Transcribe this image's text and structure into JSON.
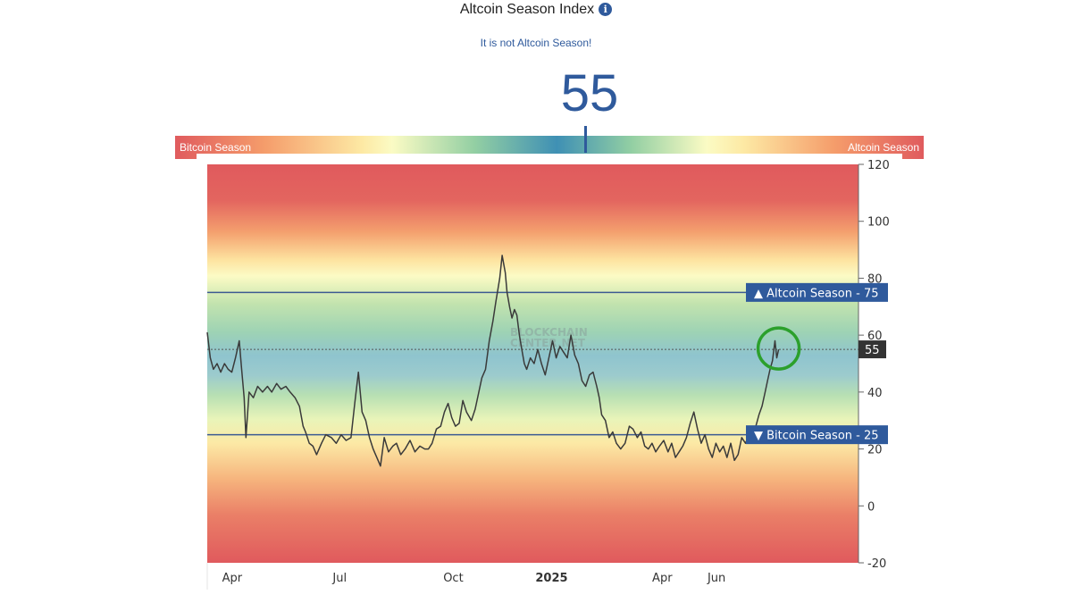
{
  "header": {
    "title": "Altcoin Season Index",
    "info_icon": "info-icon",
    "subtitle": "It is not Altcoin Season!",
    "current_value": "55"
  },
  "gauge": {
    "left_label": "Bitcoin Season",
    "right_label": "Altcoin Season",
    "value": 55,
    "scale_min": 0,
    "scale_max": 100
  },
  "watermark": [
    "BLOCKCHAIN",
    "CENTER.NET"
  ],
  "colors": {
    "accent": "#2f5a9c",
    "line": "#3a3a3a",
    "highlight_circle": "#2ca02c",
    "current_badge": "#333333"
  },
  "chart_data": {
    "type": "line",
    "title": "",
    "xlabel": "",
    "ylabel": "",
    "ylim": [
      -20,
      120
    ],
    "yticks": [
      120,
      100,
      80,
      60,
      40,
      20,
      0,
      -20
    ],
    "xticks": [
      {
        "label": "Apr",
        "t": 3,
        "bold": false
      },
      {
        "label": "Jul",
        "t": 21,
        "bold": false
      },
      {
        "label": "Oct",
        "t": 39,
        "bold": false
      },
      {
        "label": "2025",
        "t": 54,
        "bold": true
      },
      {
        "label": "Apr",
        "t": 73,
        "bold": false
      },
      {
        "label": "Jun",
        "t": 82,
        "bold": false
      }
    ],
    "x_range": [
      0,
      106
    ],
    "thresholds": [
      {
        "label": "Altcoin Season",
        "value": 75,
        "direction": "up"
      },
      {
        "label": "Bitcoin Season",
        "value": 25,
        "direction": "down"
      }
    ],
    "current": {
      "value": 55,
      "label": "55"
    },
    "series": [
      {
        "values": [
          [
            0,
            61
          ],
          [
            0.5,
            52
          ],
          [
            1,
            48
          ],
          [
            1.6,
            50
          ],
          [
            2.2,
            47
          ],
          [
            2.8,
            50
          ],
          [
            3.4,
            48
          ],
          [
            4,
            47
          ],
          [
            4.6,
            52
          ],
          [
            5,
            56
          ],
          [
            5.2,
            58
          ],
          [
            5.6,
            48
          ],
          [
            6,
            38
          ],
          [
            6.3,
            24
          ],
          [
            6.8,
            40
          ],
          [
            7.5,
            38
          ],
          [
            8.2,
            42
          ],
          [
            9,
            40
          ],
          [
            9.8,
            42
          ],
          [
            10.5,
            40
          ],
          [
            11.3,
            43
          ],
          [
            12,
            41
          ],
          [
            12.8,
            42
          ],
          [
            13.5,
            40
          ],
          [
            14.3,
            38
          ],
          [
            15,
            35
          ],
          [
            15.6,
            28
          ],
          [
            16,
            26
          ],
          [
            16.6,
            22
          ],
          [
            17.2,
            21
          ],
          [
            17.8,
            18
          ],
          [
            18.6,
            22
          ],
          [
            19.3,
            25
          ],
          [
            20.2,
            24
          ],
          [
            21,
            22
          ],
          [
            21.8,
            25
          ],
          [
            22.6,
            23
          ],
          [
            23.4,
            24
          ],
          [
            24,
            36
          ],
          [
            24.6,
            47
          ],
          [
            25.2,
            33
          ],
          [
            25.8,
            30
          ],
          [
            26.4,
            24
          ],
          [
            27,
            20
          ],
          [
            27.6,
            17
          ],
          [
            28.2,
            14
          ],
          [
            28.8,
            24
          ],
          [
            29.5,
            19
          ],
          [
            30.2,
            21
          ],
          [
            30.8,
            22
          ],
          [
            31.5,
            18
          ],
          [
            32.2,
            20
          ],
          [
            33,
            23
          ],
          [
            33.8,
            19
          ],
          [
            34.6,
            21
          ],
          [
            35.4,
            20
          ],
          [
            36,
            20
          ],
          [
            36.6,
            22
          ],
          [
            37.3,
            27
          ],
          [
            38,
            28
          ],
          [
            38.6,
            33
          ],
          [
            39.2,
            36
          ],
          [
            39.8,
            31
          ],
          [
            40.4,
            28
          ],
          [
            41,
            29
          ],
          [
            41.6,
            37
          ],
          [
            42.2,
            33
          ],
          [
            43,
            30
          ],
          [
            43.6,
            34
          ],
          [
            44.2,
            40
          ],
          [
            44.7,
            45
          ],
          [
            45.3,
            48
          ],
          [
            45.9,
            58
          ],
          [
            46.5,
            65
          ],
          [
            47,
            72
          ],
          [
            47.3,
            76
          ],
          [
            47.6,
            80
          ],
          [
            48,
            88
          ],
          [
            48.5,
            82
          ],
          [
            48.8,
            75
          ],
          [
            49.2,
            70
          ],
          [
            49.6,
            66
          ],
          [
            50,
            69
          ],
          [
            50.4,
            67
          ],
          [
            50.8,
            60
          ],
          [
            51.2,
            55
          ],
          [
            51.6,
            50
          ],
          [
            52,
            48
          ],
          [
            52.6,
            52
          ],
          [
            53.2,
            50
          ],
          [
            53.8,
            55
          ],
          [
            54.4,
            50
          ],
          [
            55,
            46
          ],
          [
            55.6,
            52
          ],
          [
            56.2,
            58
          ],
          [
            56.8,
            52
          ],
          [
            57.4,
            56
          ],
          [
            58,
            54
          ],
          [
            58.6,
            52
          ],
          [
            59.2,
            60
          ],
          [
            59.8,
            53
          ],
          [
            60.4,
            50
          ],
          [
            61,
            44
          ],
          [
            61.6,
            42
          ],
          [
            62.2,
            46
          ],
          [
            62.8,
            47
          ],
          [
            63.4,
            42
          ],
          [
            63.8,
            38
          ],
          [
            64.2,
            32
          ],
          [
            64.8,
            30
          ],
          [
            65.4,
            24
          ],
          [
            66,
            26
          ],
          [
            66.6,
            22
          ],
          [
            67.3,
            20
          ],
          [
            68,
            22
          ],
          [
            68.7,
            28
          ],
          [
            69.3,
            27
          ],
          [
            70,
            24
          ],
          [
            70.6,
            26
          ],
          [
            71.2,
            21
          ],
          [
            71.8,
            20
          ],
          [
            72.4,
            22
          ],
          [
            73,
            19
          ],
          [
            73.6,
            21
          ],
          [
            74.3,
            23
          ],
          [
            75,
            19
          ],
          [
            75.6,
            22
          ],
          [
            76.2,
            17
          ],
          [
            76.8,
            19
          ],
          [
            77.4,
            21
          ],
          [
            78,
            24
          ],
          [
            78.6,
            29
          ],
          [
            79.2,
            33
          ],
          [
            79.8,
            27
          ],
          [
            80.4,
            22
          ],
          [
            81,
            25
          ],
          [
            81.6,
            20
          ],
          [
            82.2,
            17
          ],
          [
            82.8,
            22
          ],
          [
            83.4,
            19
          ],
          [
            84,
            21
          ],
          [
            84.6,
            17
          ],
          [
            85.2,
            22
          ],
          [
            85.8,
            16
          ],
          [
            86.4,
            18
          ],
          [
            87,
            24
          ],
          [
            87.6,
            22
          ],
          [
            88.2,
            25
          ],
          [
            88.8,
            27
          ],
          [
            89.3,
            28
          ],
          [
            89.8,
            32
          ],
          [
            90.3,
            35
          ],
          [
            90.8,
            40
          ],
          [
            91.2,
            44
          ],
          [
            91.6,
            48
          ],
          [
            92,
            51
          ],
          [
            92.4,
            58
          ],
          [
            92.7,
            52
          ],
          [
            93,
            55
          ]
        ]
      }
    ]
  }
}
